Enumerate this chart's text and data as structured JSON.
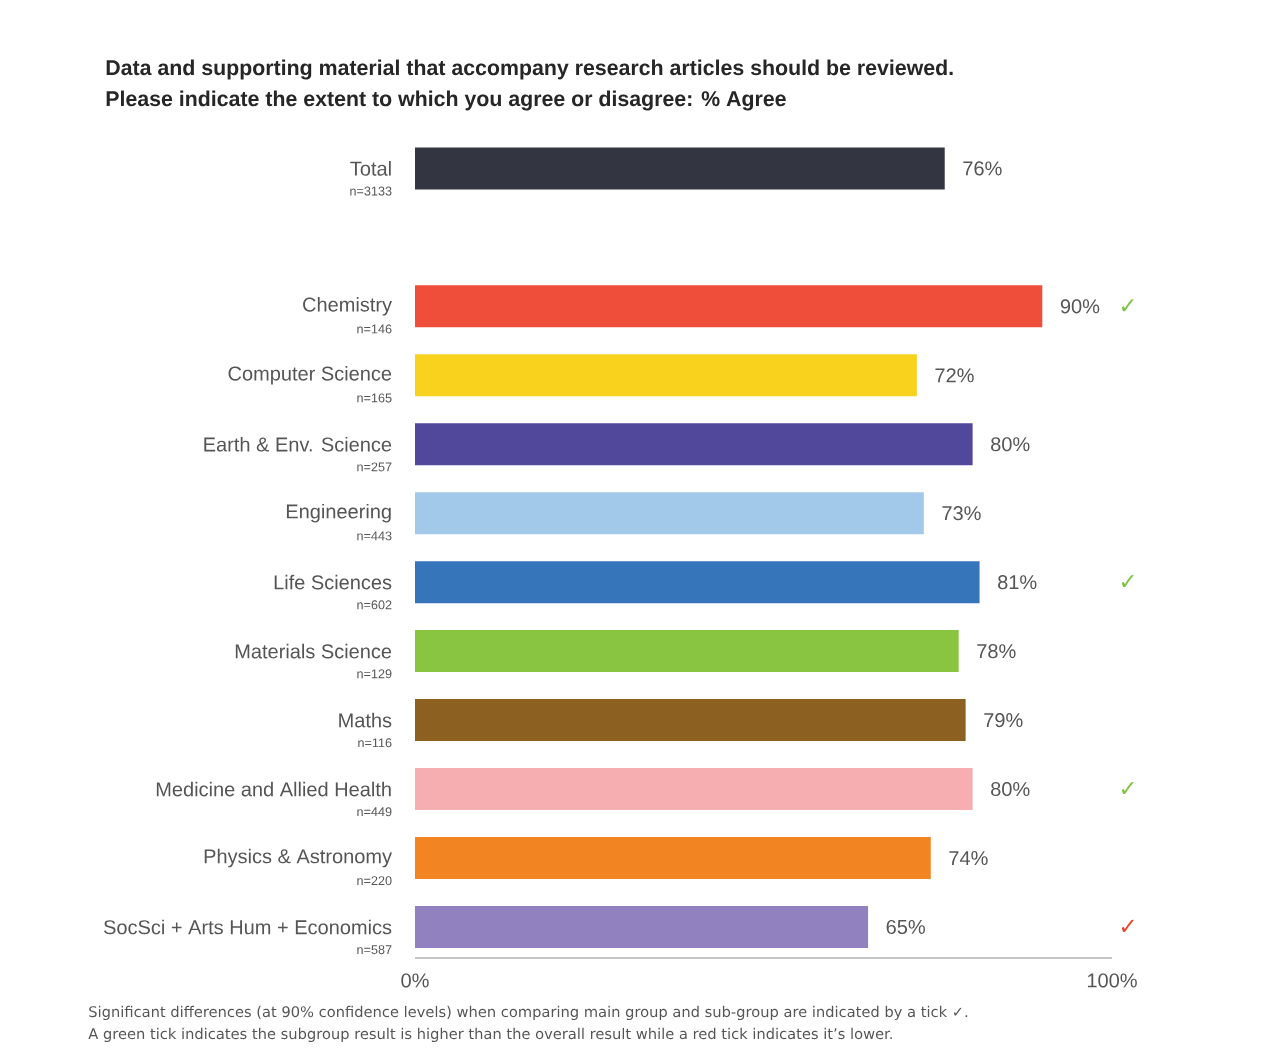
{
  "chart_data": {
    "type": "bar",
    "orientation": "horizontal",
    "title": "Data and supporting material that accompany research articles should be reviewed.",
    "subtitle": "Please indicate the extent to which you agree or disagree: % Agree",
    "categories": [
      "Total",
      null,
      "Chemistry",
      "Computer Science",
      "Earth & Env. Science",
      "Engineering",
      "Life Sciences",
      "Materials Science",
      "Maths",
      "Medicine and Allied Health",
      "Physics & Astronomy",
      "SocSci + Arts Hum + Economics"
    ],
    "values": [
      76,
      null,
      90,
      72,
      80,
      73,
      81,
      78,
      79,
      80,
      74,
      65
    ],
    "value_labels": [
      "76%",
      null,
      "90%",
      "72%",
      "80%",
      "73%",
      "81%",
      "78%",
      "79%",
      "80%",
      "74%",
      "65%"
    ],
    "colors": [
      "#333640",
      null,
      "#ef4e3a",
      "#f9d21e",
      "#51479b",
      "#a2c8ea",
      "#3775bb",
      "#89c540",
      "#8b6020",
      "#f7aeb0",
      "#f28522",
      "#9182bf"
    ],
    "xlim": [
      0,
      100
    ],
    "xticks": [
      {
        "value": 0,
        "label": "0%"
      },
      {
        "value": 100,
        "label": "100%"
      }
    ],
    "annotations": [
      "n=3133",
      "n=146",
      "✓",
      "n=165",
      "n=257",
      "n=443",
      "n=602",
      "✓",
      "n=129",
      "n=116",
      "n=449",
      "✓",
      "n=220",
      "n=587",
      "✓",
      "Significant differences (at 90% confidence levels) when comparing main group and sub-group are indicated by a tick ✓.",
      "A green tick indicates the subgroup result is higher than the overall result while a red tick indicates it’s lower."
    ]
  }
}
